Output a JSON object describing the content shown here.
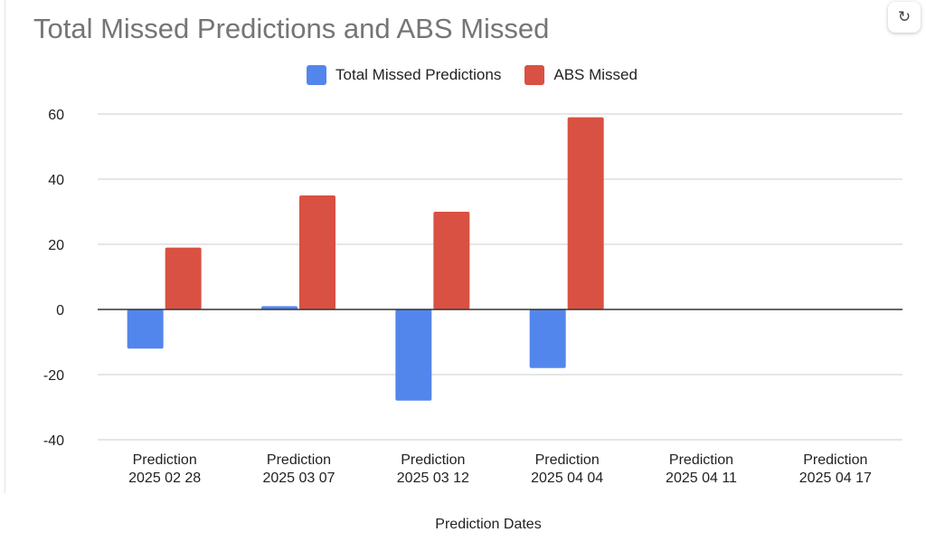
{
  "chart_data": {
    "type": "bar",
    "title": "Total Missed Predictions and ABS Missed",
    "xlabel": "Prediction Dates",
    "ylabel": "",
    "ylim": [
      -40,
      60
    ],
    "yticks": [
      60,
      40,
      20,
      0,
      -20,
      -40
    ],
    "grid": true,
    "legend_position": "top",
    "categories": [
      [
        "Prediction",
        "2025 02 28"
      ],
      [
        "Prediction",
        "2025 03 07"
      ],
      [
        "Prediction",
        "2025 03 12"
      ],
      [
        "Prediction",
        "2025 04 04"
      ],
      [
        "Prediction",
        "2025 04 11"
      ],
      [
        "Prediction",
        "2025 04 17"
      ]
    ],
    "series": [
      {
        "name": "Total Missed Predictions",
        "color": "#5386ec",
        "values": [
          -12,
          1,
          -28,
          -18,
          null,
          null
        ]
      },
      {
        "name": "ABS Missed",
        "color": "#d95142",
        "values": [
          19,
          35,
          30,
          59,
          null,
          null
        ]
      }
    ]
  },
  "toolbar": {
    "refresh_icon": "refresh-icon"
  }
}
